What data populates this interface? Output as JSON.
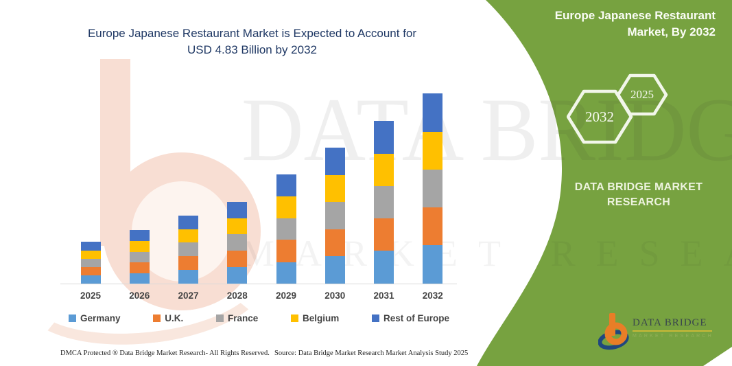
{
  "main": {
    "title_line1": "Europe Japanese Restaurant Market is Expected to Account for",
    "title_line2": "USD 4.83 Billion by 2032"
  },
  "side_panel": {
    "color": "#77A240",
    "title_line1": "Europe Japanese Restaurant",
    "title_line2": "Market, By 2032",
    "hexagon_large_label": "2032",
    "hexagon_small_label": "2025",
    "brand_line1": "DATA BRIDGE MARKET",
    "brand_line2": "RESEARCH"
  },
  "watermark": {
    "line1": "DATA BRIDGE",
    "line2": "MARKET RESEARCH"
  },
  "logo": {
    "name": "DATA BRIDGE",
    "tagline": "MARKET RESEARCH"
  },
  "footer": {
    "dmca": "DMCA Protected ® Data Bridge Market Research-  All Rights Reserved.",
    "source": "Source: Data Bridge Market Research  Market Analysis Study 2025"
  },
  "chart_data": {
    "type": "bar",
    "subtype": "stacked",
    "title": "Europe Japanese Restaurant Market is Expected to Account for USD 4.83 Billion by 2032",
    "unit": "USD Billion",
    "categories": [
      "2025",
      "2026",
      "2027",
      "2028",
      "2029",
      "2030",
      "2031",
      "2032"
    ],
    "totals": [
      1.06,
      1.36,
      1.73,
      2.08,
      2.77,
      3.45,
      4.13,
      4.83
    ],
    "series": [
      {
        "name": "Germany",
        "color": "#5B9BD5",
        "values": [
          0.21,
          0.27,
          0.35,
          0.42,
          0.55,
          0.69,
          0.83,
          0.97
        ]
      },
      {
        "name": "U.K.",
        "color": "#ED7D31",
        "values": [
          0.21,
          0.27,
          0.34,
          0.41,
          0.56,
          0.69,
          0.82,
          0.96
        ]
      },
      {
        "name": "France",
        "color": "#A5A5A5",
        "values": [
          0.21,
          0.27,
          0.35,
          0.42,
          0.55,
          0.69,
          0.83,
          0.97
        ]
      },
      {
        "name": "Belgium",
        "color": "#FFC000",
        "values": [
          0.21,
          0.27,
          0.34,
          0.41,
          0.56,
          0.69,
          0.82,
          0.96
        ]
      },
      {
        "name": "Rest of Europe",
        "color": "#4472C4",
        "values": [
          0.22,
          0.28,
          0.35,
          0.42,
          0.55,
          0.69,
          0.83,
          0.97
        ]
      }
    ],
    "xlabel": "",
    "ylabel": "",
    "ylim": [
      0,
      5
    ],
    "grid": false,
    "legend_position": "bottom"
  }
}
